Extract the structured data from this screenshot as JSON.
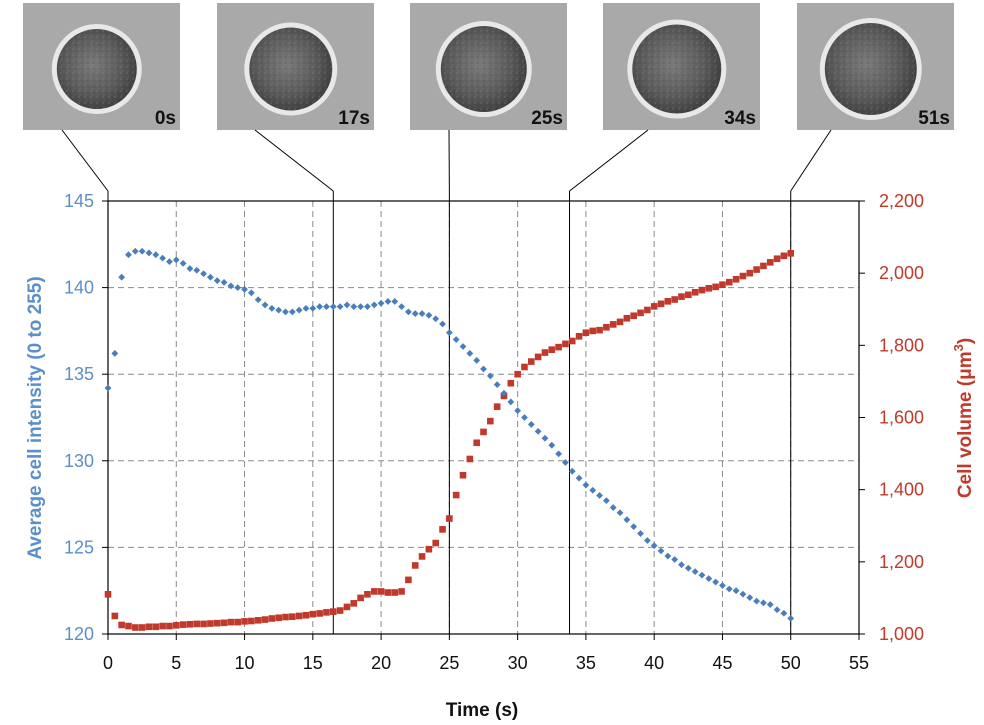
{
  "chart_data": {
    "type": "scatter",
    "xlabel": "Time (s)",
    "ylabel_left": "Average cell intensity (0 to 255)",
    "ylabel_right_base": "Cell volume (",
    "ylabel_right_unit": "μm",
    "ylabel_right_sup": "3",
    "ylabel_right_close": ")",
    "xlim": [
      0,
      55
    ],
    "ylim_left": [
      120,
      145
    ],
    "ylim_right": [
      1000,
      2200
    ],
    "x_ticks": [
      "0",
      "5",
      "10",
      "15",
      "20",
      "25",
      "30",
      "35",
      "40",
      "45",
      "50",
      "55"
    ],
    "y_left_ticks": [
      "120",
      "125",
      "130",
      "135",
      "140",
      "145"
    ],
    "y_right_ticks": [
      "1,000",
      "1,200",
      "1,400",
      "1,600",
      "1,800",
      "2,000",
      "2,200"
    ],
    "grid": true,
    "colors": {
      "intensity": "#4a7ebb",
      "volume": "#c0392b",
      "left_axis": "#5b8fc9",
      "right_axis": "#c0392b"
    },
    "frame_markers": [
      {
        "label": "0s",
        "time": 0
      },
      {
        "label": "17s",
        "time": 16.5
      },
      {
        "label": "25s",
        "time": 25
      },
      {
        "label": "34s",
        "time": 33.8
      },
      {
        "label": "51s",
        "time": 50
      }
    ],
    "series": [
      {
        "axis": "left",
        "marker": "diamond",
        "x": [
          0,
          0.5,
          1,
          1.5,
          2,
          2.5,
          3,
          3.5,
          4,
          4.5,
          5,
          5.5,
          6,
          6.5,
          7,
          7.5,
          8,
          8.5,
          9,
          9.5,
          10,
          10.5,
          11,
          11.5,
          12,
          12.5,
          13,
          13.5,
          14,
          14.5,
          15,
          15.5,
          16,
          16.5,
          17,
          17.5,
          18,
          18.5,
          19,
          19.5,
          20,
          20.5,
          21,
          21.5,
          22,
          22.5,
          23,
          23.5,
          24,
          24.5,
          25,
          25.5,
          26,
          26.5,
          27,
          27.5,
          28,
          28.5,
          29,
          29.5,
          30,
          30.5,
          31,
          31.5,
          32,
          32.5,
          33,
          33.5,
          34,
          34.5,
          35,
          35.5,
          36,
          36.5,
          37,
          37.5,
          38,
          38.5,
          39,
          39.5,
          40,
          40.5,
          41,
          41.5,
          42,
          42.5,
          43,
          43.5,
          44,
          44.5,
          45,
          45.5,
          46,
          46.5,
          47,
          47.5,
          48,
          48.5,
          49,
          49.5,
          50
        ],
        "values": [
          134.2,
          136.2,
          140.6,
          141.9,
          142.1,
          142.1,
          142.0,
          141.9,
          141.7,
          141.5,
          141.6,
          141.4,
          141.1,
          141.0,
          140.8,
          140.6,
          140.4,
          140.3,
          140.1,
          140.0,
          139.9,
          139.7,
          139.3,
          139.0,
          138.8,
          138.7,
          138.6,
          138.6,
          138.7,
          138.8,
          138.8,
          138.9,
          138.9,
          138.9,
          138.9,
          139.0,
          138.9,
          138.9,
          138.9,
          139.0,
          139.1,
          139.2,
          139.2,
          138.9,
          138.6,
          138.5,
          138.5,
          138.4,
          138.2,
          137.9,
          137.4,
          137.0,
          136.6,
          136.2,
          135.8,
          135.3,
          134.9,
          134.4,
          133.9,
          133.4,
          132.9,
          132.5,
          132.1,
          131.7,
          131.3,
          130.9,
          130.4,
          129.9,
          129.4,
          129.0,
          128.6,
          128.3,
          128.0,
          127.7,
          127.3,
          127.0,
          126.6,
          126.2,
          125.8,
          125.4,
          125.1,
          124.8,
          124.5,
          124.3,
          124.0,
          123.8,
          123.6,
          123.4,
          123.2,
          123.0,
          122.8,
          122.6,
          122.5,
          122.3,
          122.1,
          121.9,
          121.8,
          121.7,
          121.4,
          121.2,
          120.9
        ]
      },
      {
        "axis": "right",
        "marker": "square",
        "x": [
          0,
          0.5,
          1,
          1.5,
          2,
          2.5,
          3,
          3.5,
          4,
          4.5,
          5,
          5.5,
          6,
          6.5,
          7,
          7.5,
          8,
          8.5,
          9,
          9.5,
          10,
          10.5,
          11,
          11.5,
          12,
          12.5,
          13,
          13.5,
          14,
          14.5,
          15,
          15.5,
          16,
          16.5,
          17,
          17.5,
          18,
          18.5,
          19,
          19.5,
          20,
          20.5,
          21,
          21.5,
          22,
          22.5,
          23,
          23.5,
          24,
          24.5,
          25,
          25.5,
          26,
          26.5,
          27,
          27.5,
          28,
          28.5,
          29,
          29.5,
          30,
          30.5,
          31,
          31.5,
          32,
          32.5,
          33,
          33.5,
          34,
          34.5,
          35,
          35.5,
          36,
          36.5,
          37,
          37.5,
          38,
          38.5,
          39,
          39.5,
          40,
          40.5,
          41,
          41.5,
          42,
          42.5,
          43,
          43.5,
          44,
          44.5,
          45,
          45.5,
          46,
          46.5,
          47,
          47.5,
          48,
          48.5,
          49,
          49.5,
          50
        ],
        "values": [
          1110,
          1050,
          1025,
          1022,
          1018,
          1018,
          1020,
          1020,
          1022,
          1022,
          1024,
          1026,
          1027,
          1028,
          1028,
          1029,
          1030,
          1031,
          1033,
          1033,
          1035,
          1036,
          1038,
          1040,
          1043,
          1045,
          1047,
          1048,
          1050,
          1052,
          1055,
          1057,
          1060,
          1062,
          1065,
          1075,
          1085,
          1100,
          1110,
          1118,
          1118,
          1115,
          1115,
          1118,
          1150,
          1190,
          1215,
          1235,
          1252,
          1290,
          1320,
          1385,
          1440,
          1485,
          1530,
          1560,
          1590,
          1630,
          1660,
          1695,
          1720,
          1740,
          1755,
          1768,
          1780,
          1788,
          1795,
          1804,
          1812,
          1825,
          1835,
          1840,
          1842,
          1850,
          1858,
          1865,
          1875,
          1882,
          1890,
          1898,
          1908,
          1915,
          1922,
          1927,
          1935,
          1940,
          1947,
          1953,
          1958,
          1962,
          1968,
          1975,
          1983,
          1992,
          2000,
          2010,
          2020,
          2030,
          2040,
          2048,
          2055
        ]
      }
    ]
  }
}
